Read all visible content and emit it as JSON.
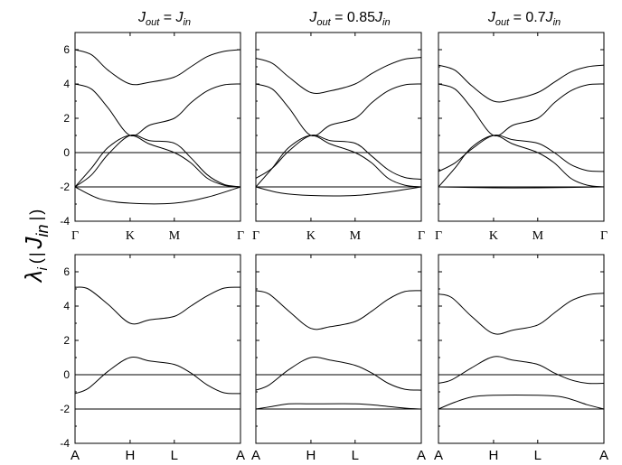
{
  "chart_data": {
    "type": "line",
    "ylabel": {
      "lambda": "λ",
      "sub_i": "i",
      "open": "(",
      "J": "J",
      "sub_in": "in",
      "close": ")"
    },
    "column_titles": [
      {
        "J": "J",
        "sub_out": "out",
        "eq": " = ",
        "coef": "",
        "J2": "J",
        "sub_in": "in"
      },
      {
        "J": "J",
        "sub_out": "out",
        "eq": " = ",
        "coef": "0.85",
        "J2": "J",
        "sub_in": "in"
      },
      {
        "J": "J",
        "sub_out": "out",
        "eq": " = ",
        "coef": "0.7",
        "J2": "J",
        "sub_in": "in"
      }
    ],
    "ylim": [
      -4,
      7
    ],
    "yticks": [
      "6",
      "4",
      "2",
      "0",
      "-2",
      "-4"
    ],
    "ytick_values": [
      6,
      4,
      2,
      0,
      -2,
      -4
    ],
    "top_kpath": [
      "Γ",
      "K",
      "M",
      "Γ"
    ],
    "bottom_kpath": [
      "A",
      "H",
      "L",
      "A"
    ],
    "kpath_positions": [
      0,
      0.333,
      0.6,
      1
    ],
    "panels": [
      {
        "row": "top",
        "col": 0,
        "series": [
          {
            "x": [
              0,
              0.1,
              0.2,
              0.333,
              0.45,
              0.6,
              0.7,
              0.8,
              0.9,
              1
            ],
            "y": [
              6,
              5.7,
              4.8,
              4.0,
              4.1,
              4.4,
              5.0,
              5.6,
              5.9,
              6
            ]
          },
          {
            "x": [
              0,
              0.1,
              0.2,
              0.333,
              0.45,
              0.6,
              0.7,
              0.8,
              0.9,
              1
            ],
            "y": [
              4,
              3.7,
              2.6,
              1.0,
              1.6,
              2.0,
              2.9,
              3.6,
              3.95,
              4
            ]
          },
          {
            "x": [
              0,
              0.1,
              0.2,
              0.333,
              0.45,
              0.6,
              0.7,
              0.8,
              0.9,
              1
            ],
            "y": [
              -2,
              -1.3,
              -0.1,
              1.0,
              0.7,
              0.55,
              -0.3,
              -1.3,
              -1.85,
              -2
            ]
          },
          {
            "x": [
              0,
              0.1,
              0.2,
              0.333,
              0.45,
              0.6,
              0.7,
              0.8,
              0.9,
              1
            ],
            "y": [
              -2,
              -0.9,
              0.3,
              1.0,
              0.5,
              0.0,
              -0.6,
              -1.5,
              -1.9,
              -2
            ]
          },
          {
            "x": [
              0,
              0.15,
              0.333,
              0.6,
              0.8,
              1
            ],
            "y": [
              -2,
              -2.7,
              -2.95,
              -2.95,
              -2.6,
              -2
            ]
          },
          {
            "x": [
              0,
              1
            ],
            "y": [
              -2,
              -2
            ]
          }
        ]
      },
      {
        "row": "top",
        "col": 1,
        "series": [
          {
            "x": [
              0,
              0.1,
              0.2,
              0.333,
              0.45,
              0.6,
              0.7,
              0.8,
              0.9,
              1
            ],
            "y": [
              5.5,
              5.2,
              4.4,
              3.5,
              3.6,
              4.0,
              4.6,
              5.1,
              5.45,
              5.55
            ]
          },
          {
            "x": [
              0,
              0.1,
              0.2,
              0.333,
              0.45,
              0.6,
              0.7,
              0.8,
              0.9,
              1
            ],
            "y": [
              4,
              3.7,
              2.6,
              1.0,
              1.6,
              2.0,
              2.9,
              3.6,
              3.95,
              4
            ]
          },
          {
            "x": [
              0,
              0.1,
              0.2,
              0.333,
              0.45,
              0.6,
              0.7,
              0.8,
              0.9,
              1
            ],
            "y": [
              -1.5,
              -0.9,
              0.1,
              1.0,
              0.7,
              0.55,
              -0.2,
              -1.0,
              -1.45,
              -1.55
            ]
          },
          {
            "x": [
              0,
              0.1,
              0.2,
              0.333,
              0.45,
              0.6,
              0.7,
              0.8,
              0.9,
              1
            ],
            "y": [
              -2,
              -0.9,
              0.3,
              1.0,
              0.5,
              0.0,
              -0.6,
              -1.5,
              -1.9,
              -2
            ]
          },
          {
            "x": [
              0,
              0.15,
              0.333,
              0.6,
              0.8,
              1
            ],
            "y": [
              -2,
              -2.35,
              -2.5,
              -2.5,
              -2.3,
              -2
            ]
          },
          {
            "x": [
              0,
              1
            ],
            "y": [
              -2,
              -2
            ]
          }
        ]
      },
      {
        "row": "top",
        "col": 2,
        "series": [
          {
            "x": [
              0,
              0.1,
              0.2,
              0.333,
              0.45,
              0.6,
              0.7,
              0.8,
              0.9,
              1
            ],
            "y": [
              5.1,
              4.8,
              3.9,
              3.0,
              3.1,
              3.5,
              4.1,
              4.7,
              5.0,
              5.1
            ]
          },
          {
            "x": [
              0,
              0.1,
              0.2,
              0.333,
              0.45,
              0.6,
              0.7,
              0.8,
              0.9,
              1
            ],
            "y": [
              4,
              3.7,
              2.6,
              1.0,
              1.6,
              2.0,
              2.9,
              3.6,
              3.95,
              4
            ]
          },
          {
            "x": [
              0,
              0.1,
              0.2,
              0.333,
              0.45,
              0.6,
              0.7,
              0.8,
              0.9,
              1
            ],
            "y": [
              -1.1,
              -0.6,
              0.2,
              1.0,
              0.75,
              0.55,
              0.0,
              -0.7,
              -1.05,
              -1.1
            ]
          },
          {
            "x": [
              0,
              0.1,
              0.2,
              0.333,
              0.45,
              0.6,
              0.7,
              0.8,
              0.9,
              1
            ],
            "y": [
              -2,
              -0.9,
              0.3,
              1.0,
              0.5,
              0.0,
              -0.6,
              -1.5,
              -1.9,
              -2
            ]
          },
          {
            "x": [
              0,
              0.333,
              0.6,
              1
            ],
            "y": [
              -2,
              -2.05,
              -2.05,
              -2
            ]
          },
          {
            "x": [
              0,
              1
            ],
            "y": [
              -2,
              -2
            ]
          }
        ]
      },
      {
        "row": "bottom",
        "col": 0,
        "series": [
          {
            "x": [
              0,
              0.08,
              0.2,
              0.333,
              0.45,
              0.6,
              0.7,
              0.8,
              0.9,
              1
            ],
            "y": [
              5.1,
              5.0,
              4.1,
              3.0,
              3.2,
              3.4,
              4.0,
              4.6,
              5.05,
              5.1
            ]
          },
          {
            "x": [
              0,
              0.08,
              0.2,
              0.333,
              0.45,
              0.6,
              0.7,
              0.8,
              0.9,
              1
            ],
            "y": [
              -1.1,
              -0.8,
              0.2,
              1.0,
              0.8,
              0.6,
              0.1,
              -0.6,
              -1.05,
              -1.1
            ]
          },
          {
            "x": [
              0,
              1
            ],
            "y": [
              -2,
              -2
            ]
          }
        ]
      },
      {
        "row": "bottom",
        "col": 1,
        "series": [
          {
            "x": [
              0,
              0.08,
              0.2,
              0.333,
              0.45,
              0.6,
              0.7,
              0.8,
              0.9,
              1
            ],
            "y": [
              4.9,
              4.7,
              3.7,
              2.7,
              2.8,
              3.1,
              3.7,
              4.4,
              4.85,
              4.9
            ]
          },
          {
            "x": [
              0,
              0.08,
              0.2,
              0.333,
              0.45,
              0.6,
              0.7,
              0.8,
              0.9,
              1
            ],
            "y": [
              -0.9,
              -0.6,
              0.3,
              1.0,
              0.85,
              0.55,
              0.1,
              -0.5,
              -0.85,
              -0.9
            ]
          },
          {
            "x": [
              0,
              0.1,
              0.2,
              0.333,
              0.6,
              0.75,
              0.9,
              1
            ],
            "y": [
              -2,
              -1.85,
              -1.7,
              -1.7,
              -1.7,
              -1.8,
              -1.95,
              -2
            ]
          },
          {
            "x": [
              0,
              1
            ],
            "y": [
              -2,
              -2
            ]
          }
        ]
      },
      {
        "row": "bottom",
        "col": 2,
        "series": [
          {
            "x": [
              0,
              0.08,
              0.2,
              0.333,
              0.45,
              0.6,
              0.7,
              0.8,
              0.9,
              1
            ],
            "y": [
              4.7,
              4.5,
              3.4,
              2.4,
              2.6,
              2.9,
              3.6,
              4.3,
              4.65,
              4.75
            ]
          },
          {
            "x": [
              0,
              0.08,
              0.2,
              0.333,
              0.45,
              0.6,
              0.7,
              0.8,
              0.9,
              1
            ],
            "y": [
              -0.5,
              -0.3,
              0.4,
              1.05,
              0.85,
              0.6,
              0.1,
              -0.3,
              -0.5,
              -0.5
            ]
          },
          {
            "x": [
              0,
              0.1,
              0.2,
              0.333,
              0.6,
              0.75,
              0.9,
              1
            ],
            "y": [
              -2,
              -1.6,
              -1.3,
              -1.2,
              -1.2,
              -1.3,
              -1.75,
              -2
            ]
          },
          {
            "x": [
              0,
              1
            ],
            "y": [
              -2,
              -2
            ]
          }
        ]
      }
    ],
    "grid": false,
    "legend": "none"
  }
}
